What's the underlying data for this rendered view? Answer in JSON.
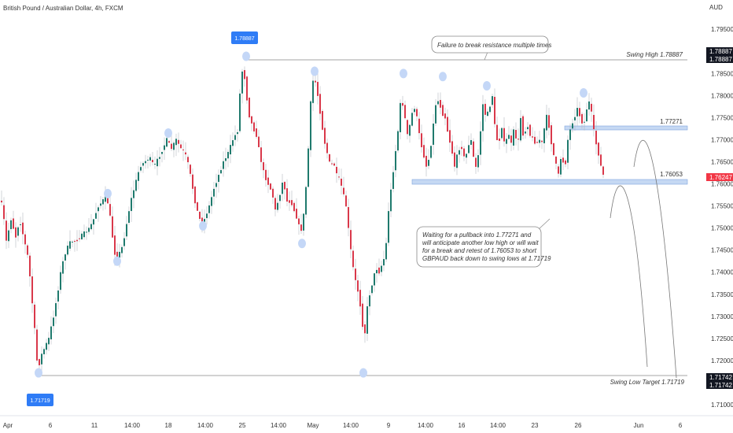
{
  "header": {
    "title": "British Pound / Australian Dollar, 4h, FXCM"
  },
  "chart_data": {
    "type": "candlestick",
    "currency": "AUD",
    "ylim": [
      1.7075,
      1.7995
    ],
    "yticks": [
      "1.79500",
      "1.79000",
      "1.78500",
      "1.78000",
      "1.77500",
      "1.77000",
      "1.76500",
      "1.76000",
      "1.75500",
      "1.75000",
      "1.74500",
      "1.74000",
      "1.73500",
      "1.73000",
      "1.72500",
      "1.72000",
      "1.71500",
      "1.71000"
    ],
    "xticks": [
      "Apr",
      "6",
      "11",
      "14:00",
      "18",
      "14:00",
      "25",
      "14:00",
      "May",
      "14:00",
      "9",
      "14:00",
      "16",
      "14:00",
      "23",
      "26",
      "Jun",
      "6"
    ],
    "axis_badges": [
      {
        "text": "1.78887",
        "value": 1.78887
      },
      {
        "text": "1.78887",
        "value": 1.78887
      },
      {
        "text": "1.76247",
        "value": 1.76247
      },
      {
        "text": "1.71742",
        "value": 1.71742
      },
      {
        "text": "1.71742",
        "value": 1.71742
      }
    ],
    "levels": [
      {
        "label": "Swing High 1.78887",
        "value": 1.78887
      },
      {
        "label": "1.77271",
        "value": 1.77271
      },
      {
        "label": "1.76053",
        "value": 1.76053
      },
      {
        "label": "Swing Low Target 1.71719",
        "value": 1.71719
      }
    ],
    "price_tags": [
      {
        "text": "1.78887",
        "value": 1.78887
      },
      {
        "text": "1.71719",
        "value": 1.71719
      }
    ],
    "annotations": [
      {
        "lines": [
          "Failure to break resistance multiple times"
        ]
      },
      {
        "lines": [
          "Waiting for a pullback into 1.77271 and",
          "will anticipate another low high or will wait",
          "for a break and retest of 1.76053 to short",
          "GBPAUD back down to swing lows at 1.71719"
        ]
      }
    ],
    "path": [
      [
        0,
        1.757
      ],
      [
        5,
        1.755
      ],
      [
        10,
        1.747
      ],
      [
        16,
        1.752
      ],
      [
        22,
        1.748
      ],
      [
        27,
        1.752
      ],
      [
        33,
        1.747
      ],
      [
        38,
        1.743
      ],
      [
        43,
        1.733
      ],
      [
        47,
        1.725
      ],
      [
        50,
        1.7175
      ],
      [
        54,
        1.721
      ],
      [
        59,
        1.723
      ],
      [
        64,
        1.725
      ],
      [
        70,
        1.73
      ],
      [
        75,
        1.735
      ],
      [
        80,
        1.741
      ],
      [
        86,
        1.745
      ],
      [
        92,
        1.747
      ],
      [
        98,
        1.747
      ],
      [
        104,
        1.748
      ],
      [
        110,
        1.749
      ],
      [
        116,
        1.75
      ],
      [
        121,
        1.752
      ],
      [
        127,
        1.755
      ],
      [
        132,
        1.756
      ],
      [
        137,
        1.7575
      ],
      [
        141,
        1.754
      ],
      [
        145,
        1.748
      ],
      [
        149,
        1.743
      ],
      [
        153,
        1.744
      ],
      [
        158,
        1.746
      ],
      [
        163,
        1.751
      ],
      [
        168,
        1.756
      ],
      [
        174,
        1.76
      ],
      [
        180,
        1.764
      ],
      [
        186,
        1.765
      ],
      [
        192,
        1.766
      ],
      [
        198,
        1.764
      ],
      [
        204,
        1.766
      ],
      [
        209,
        1.768
      ],
      [
        214,
        1.77
      ],
      [
        220,
        1.768
      ],
      [
        226,
        1.77
      ],
      [
        232,
        1.768
      ],
      [
        237,
        1.767
      ],
      [
        242,
        1.764
      ],
      [
        246,
        1.76
      ],
      [
        250,
        1.756
      ],
      [
        254,
        1.753
      ],
      [
        258,
        1.751
      ],
      [
        262,
        1.752
      ],
      [
        268,
        1.755
      ],
      [
        274,
        1.759
      ],
      [
        280,
        1.762
      ],
      [
        286,
        1.765
      ],
      [
        292,
        1.767
      ],
      [
        298,
        1.77
      ],
      [
        304,
        1.772
      ],
      [
        309,
        1.786
      ],
      [
        313,
        1.784
      ],
      [
        318,
        1.776
      ],
      [
        323,
        1.773
      ],
      [
        328,
        1.771
      ],
      [
        333,
        1.766
      ],
      [
        338,
        1.762
      ],
      [
        343,
        1.76
      ],
      [
        348,
        1.758
      ],
      [
        352,
        1.754
      ],
      [
        357,
        1.757
      ],
      [
        362,
        1.761
      ],
      [
        367,
        1.756
      ],
      [
        372,
        1.756
      ],
      [
        376,
        1.754
      ],
      [
        380,
        1.752
      ],
      [
        384,
        1.749
      ],
      [
        387,
        1.751
      ],
      [
        390,
        1.757
      ],
      [
        393,
        1.764
      ],
      [
        396,
        1.776
      ],
      [
        399,
        1.783
      ],
      [
        402,
        1.784
      ],
      [
        406,
        1.78
      ],
      [
        410,
        1.775
      ],
      [
        414,
        1.77
      ],
      [
        418,
        1.767
      ],
      [
        422,
        1.764
      ],
      [
        426,
        1.765
      ],
      [
        430,
        1.762
      ],
      [
        434,
        1.761
      ],
      [
        438,
        1.758
      ],
      [
        442,
        1.755
      ],
      [
        446,
        1.748
      ],
      [
        450,
        1.742
      ],
      [
        454,
        1.738
      ],
      [
        458,
        1.735
      ],
      [
        462,
        1.73
      ],
      [
        465,
        1.724
      ],
      [
        468,
        1.731
      ],
      [
        472,
        1.735
      ],
      [
        476,
        1.738
      ],
      [
        480,
        1.741
      ],
      [
        484,
        1.74
      ],
      [
        488,
        1.742
      ],
      [
        492,
        1.744
      ],
      [
        496,
        1.754
      ],
      [
        500,
        1.76
      ],
      [
        504,
        1.766
      ],
      [
        508,
        1.772
      ],
      [
        512,
        1.78
      ],
      [
        516,
        1.776
      ],
      [
        520,
        1.771
      ],
      [
        524,
        1.774
      ],
      [
        528,
        1.778
      ],
      [
        532,
        1.775
      ],
      [
        536,
        1.77
      ],
      [
        540,
        1.767
      ],
      [
        544,
        1.764
      ],
      [
        548,
        1.766
      ],
      [
        552,
        1.772
      ],
      [
        556,
        1.778
      ],
      [
        560,
        1.779
      ],
      [
        564,
        1.776
      ],
      [
        568,
        1.775
      ],
      [
        572,
        1.771
      ],
      [
        576,
        1.768
      ],
      [
        580,
        1.764
      ],
      [
        584,
        1.767
      ],
      [
        588,
        1.769
      ],
      [
        592,
        1.766
      ],
      [
        596,
        1.767
      ],
      [
        600,
        1.771
      ],
      [
        604,
        1.766
      ],
      [
        608,
        1.763
      ],
      [
        612,
        1.77
      ],
      [
        616,
        1.778
      ],
      [
        620,
        1.775
      ],
      [
        624,
        1.777
      ],
      [
        628,
        1.78
      ],
      [
        632,
        1.771
      ],
      [
        636,
        1.769
      ],
      [
        640,
        1.773
      ],
      [
        644,
        1.768
      ],
      [
        648,
        1.772
      ],
      [
        652,
        1.769
      ],
      [
        656,
        1.773
      ],
      [
        660,
        1.768
      ],
      [
        664,
        1.775
      ],
      [
        668,
        1.77
      ],
      [
        672,
        1.774
      ],
      [
        676,
        1.771
      ],
      [
        680,
        1.77
      ],
      [
        684,
        1.769
      ],
      [
        688,
        1.77
      ],
      [
        692,
        1.769
      ],
      [
        696,
        1.776
      ],
      [
        700,
        1.773
      ],
      [
        704,
        1.768
      ],
      [
        708,
        1.765
      ],
      [
        712,
        1.762
      ],
      [
        716,
        1.767
      ],
      [
        720,
        1.763
      ],
      [
        724,
        1.77
      ],
      [
        728,
        1.773
      ],
      [
        732,
        1.775
      ],
      [
        736,
        1.777
      ],
      [
        740,
        1.775
      ],
      [
        744,
        1.773
      ],
      [
        748,
        1.777
      ],
      [
        752,
        1.779
      ],
      [
        756,
        1.773
      ],
      [
        760,
        1.769
      ],
      [
        764,
        1.766
      ],
      [
        768,
        1.762
      ]
    ],
    "highlight_dots": [
      [
        49,
        1.71719
      ],
      [
        137,
        1.7578
      ],
      [
        149,
        1.7425
      ],
      [
        214,
        1.7715
      ],
      [
        258,
        1.7505
      ],
      [
        313,
        1.7889
      ],
      [
        384,
        1.7465
      ],
      [
        400,
        1.7855
      ],
      [
        462,
        1.7172
      ],
      [
        513,
        1.785
      ],
      [
        563,
        1.7843
      ],
      [
        619,
        1.7822
      ],
      [
        742,
        1.7806
      ]
    ]
  }
}
